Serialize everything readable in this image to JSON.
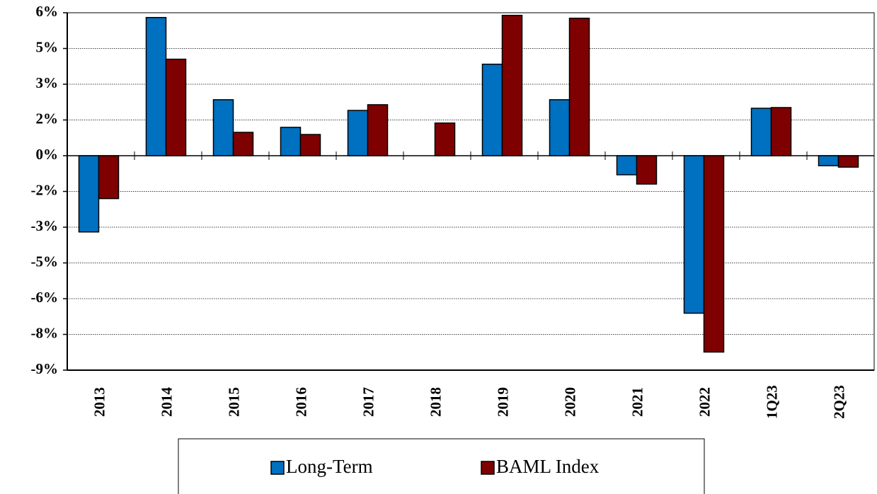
{
  "chart_data": {
    "type": "bar",
    "categories": [
      "2013",
      "2014",
      "2015",
      "2016",
      "2017",
      "2018",
      "2019",
      "2020",
      "2021",
      "2022",
      "1Q23",
      "2Q23"
    ],
    "series": [
      {
        "name": "Long-Term",
        "color": "#0070c0",
        "values": [
          -3.2,
          5.8,
          2.35,
          1.19,
          1.9,
          0,
          3.84,
          2.35,
          -0.8,
          -6.61,
          1.99,
          -0.42
        ]
      },
      {
        "name": "BAML Index",
        "color": "#7f0000",
        "values": [
          -1.8,
          4.05,
          0.98,
          0.89,
          2.14,
          1.37,
          5.89,
          5.77,
          -1.19,
          -8.24,
          2.02,
          -0.48
        ]
      }
    ],
    "ylim": [
      -9,
      6
    ],
    "yticks": [
      {
        "value": 6,
        "label": "6%"
      },
      {
        "value": 4.5,
        "label": "5%"
      },
      {
        "value": 3,
        "label": "3%"
      },
      {
        "value": 1.5,
        "label": "2%"
      },
      {
        "value": 0,
        "label": "0%"
      },
      {
        "value": -1.5,
        "label": "-2%"
      },
      {
        "value": -3,
        "label": "-3%"
      },
      {
        "value": -4.5,
        "label": "-5%"
      },
      {
        "value": -6,
        "label": "-6%"
      },
      {
        "value": -7.5,
        "label": "-8%"
      },
      {
        "value": -9,
        "label": "-9%"
      }
    ],
    "grid": true,
    "legend": "bottom"
  }
}
